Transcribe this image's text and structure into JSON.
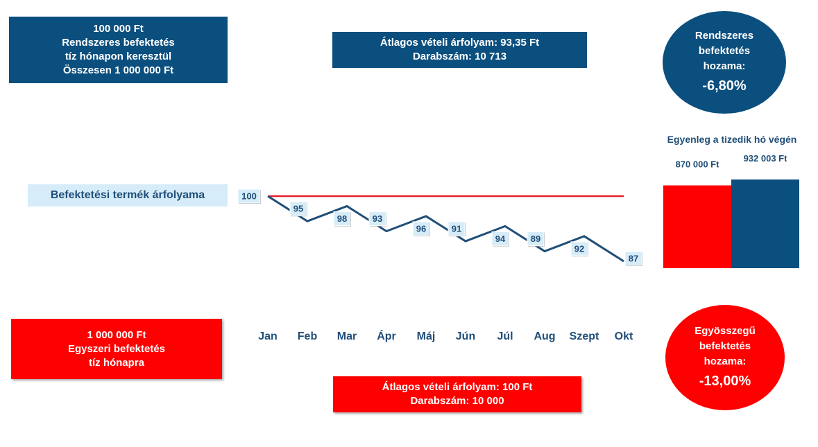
{
  "periodic_box": {
    "line1": "100 000 Ft",
    "line2": "Rendszeres befektetés",
    "line3": "tíz hónapon keresztül",
    "line4": "Összesen 1 000 000 Ft"
  },
  "periodic_avg_box": {
    "line1": "Átlagos vételi árfolyam: 93,35 Ft",
    "line2": "Darabszám: 10 713"
  },
  "periodic_circle": {
    "line1": "Rendszeres",
    "line2": "befektetés",
    "line3": "hozama:",
    "value": "-6,80%"
  },
  "lump_box": {
    "line1": "1 000 000 Ft",
    "line2": "Egyszeri befektetés",
    "line3": "tíz hónapra"
  },
  "lump_avg_box": {
    "line1": "Átlagos vételi árfolyam: 100 Ft",
    "line2": "Darabszám: 10 000"
  },
  "lump_circle": {
    "line1": "Egyösszegű",
    "line2": "befektetés",
    "line3": "hozama:",
    "value": "-13,00%"
  },
  "price_label": "Befektetési termék árfolyama",
  "balance_title": "Egyenleg a tizedik hó végén",
  "colors": {
    "blue": "#0b4f7e",
    "red": "#ff0000",
    "light_blue": "#d6ecf8",
    "text_blue": "#1f4e78"
  },
  "chart_data": [
    {
      "type": "line",
      "categories": [
        "Jan",
        "Feb",
        "Mar",
        "Ápr",
        "Máj",
        "Jún",
        "Júl",
        "Aug",
        "Szept",
        "Okt"
      ],
      "series": [
        {
          "values": [
            100,
            95,
            98,
            93,
            96,
            91,
            94,
            89,
            92,
            87
          ],
          "color": "#1f4e78"
        },
        {
          "values": [
            100,
            100,
            100,
            100,
            100,
            100,
            100,
            100,
            100,
            100
          ],
          "color": "#e5202e"
        }
      ],
      "data_labels": [
        "100",
        "95",
        "98",
        "93",
        "96",
        "91",
        "94",
        "89",
        "92",
        "87"
      ],
      "ylim": [
        87,
        100
      ],
      "grid": false
    },
    {
      "type": "bar",
      "title": "Egyenleg a tizedik hó végén",
      "categories": [
        "",
        ""
      ],
      "values": [
        870000,
        932003
      ],
      "value_labels": [
        "870 000 Ft",
        "932 003 Ft"
      ],
      "colors": [
        "#ff0000",
        "#0b4f7e"
      ]
    }
  ]
}
